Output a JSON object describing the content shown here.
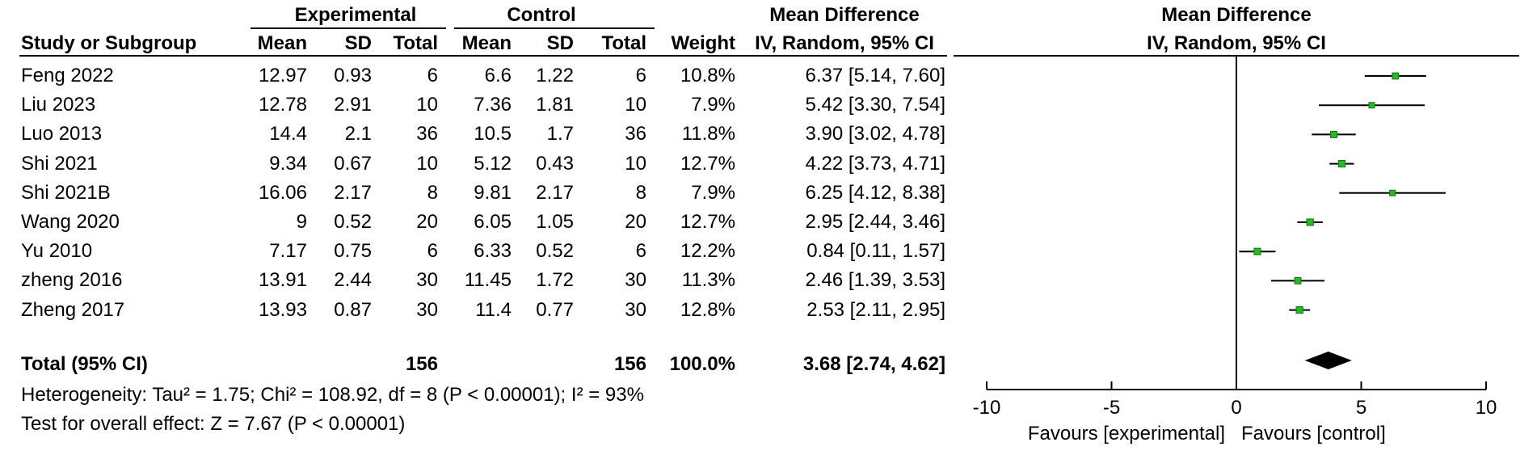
{
  "header": {
    "group1": "Experimental",
    "group2": "Control",
    "md_title": "Mean Difference",
    "md_subtitle": "IV, Random, 95% CI",
    "plot_title": "Mean Difference",
    "plot_subtitle": "IV, Random, 95% CI",
    "cols": {
      "study": "Study or Subgroup",
      "e_mean": "Mean",
      "e_sd": "SD",
      "e_total": "Total",
      "c_mean": "Mean",
      "c_sd": "SD",
      "c_total": "Total",
      "weight": "Weight"
    }
  },
  "studies": [
    {
      "name": "Feng 2022",
      "e_mean": "12.97",
      "e_sd": "0.93",
      "e_total": "6",
      "c_mean": "6.6",
      "c_sd": "1.22",
      "c_total": "6",
      "weight": "10.8%",
      "ci": "6.37 [5.14, 7.60]"
    },
    {
      "name": "Liu 2023",
      "e_mean": "12.78",
      "e_sd": "2.91",
      "e_total": "10",
      "c_mean": "7.36",
      "c_sd": "1.81",
      "c_total": "10",
      "weight": "7.9%",
      "ci": "5.42 [3.30, 7.54]"
    },
    {
      "name": "Luo 2013",
      "e_mean": "14.4",
      "e_sd": "2.1",
      "e_total": "36",
      "c_mean": "10.5",
      "c_sd": "1.7",
      "c_total": "36",
      "weight": "11.8%",
      "ci": "3.90 [3.02, 4.78]"
    },
    {
      "name": "Shi 2021",
      "e_mean": "9.34",
      "e_sd": "0.67",
      "e_total": "10",
      "c_mean": "5.12",
      "c_sd": "0.43",
      "c_total": "10",
      "weight": "12.7%",
      "ci": "4.22 [3.73, 4.71]"
    },
    {
      "name": "Shi 2021B",
      "e_mean": "16.06",
      "e_sd": "2.17",
      "e_total": "8",
      "c_mean": "9.81",
      "c_sd": "2.17",
      "c_total": "8",
      "weight": "7.9%",
      "ci": "6.25 [4.12, 8.38]"
    },
    {
      "name": "Wang 2020",
      "e_mean": "9",
      "e_sd": "0.52",
      "e_total": "20",
      "c_mean": "6.05",
      "c_sd": "1.05",
      "c_total": "20",
      "weight": "12.7%",
      "ci": "2.95 [2.44, 3.46]"
    },
    {
      "name": "Yu 2010",
      "e_mean": "7.17",
      "e_sd": "0.75",
      "e_total": "6",
      "c_mean": "6.33",
      "c_sd": "0.52",
      "c_total": "6",
      "weight": "12.2%",
      "ci": "0.84 [0.11, 1.57]"
    },
    {
      "name": "zheng 2016",
      "e_mean": "13.91",
      "e_sd": "2.44",
      "e_total": "30",
      "c_mean": "11.45",
      "c_sd": "1.72",
      "c_total": "30",
      "weight": "11.3%",
      "ci": "2.46 [1.39, 3.53]"
    },
    {
      "name": "Zheng 2017",
      "e_mean": "13.93",
      "e_sd": "0.87",
      "e_total": "30",
      "c_mean": "11.4",
      "c_sd": "0.77",
      "c_total": "30",
      "weight": "12.8%",
      "ci": "2.53 [2.11, 2.95]"
    }
  ],
  "total": {
    "label": "Total (95% CI)",
    "e_total": "156",
    "c_total": "156",
    "weight": "100.0%",
    "ci": "3.68 [2.74, 4.62]"
  },
  "heterogeneity": "Heterogeneity: Tau² = 1.75; Chi² = 108.92, df = 8 (P < 0.00001); I² = 93%",
  "overall_effect": "Test for overall effect: Z = 7.67 (P < 0.00001)",
  "colors": {
    "marker": "#22bb22",
    "diamond": "#000000",
    "line": "#000000"
  },
  "chart_data": {
    "type": "forest",
    "title": "Mean Difference",
    "subtitle": "IV, Random, 95% CI",
    "xlim": [
      -10,
      10
    ],
    "xticks": [
      -10,
      -5,
      0,
      5,
      10
    ],
    "xtick_labels": [
      "-10",
      "-5",
      "0",
      "5",
      "10"
    ],
    "favours_left": "Favours [experimental]",
    "favours_right": "Favours [control]",
    "points": [
      {
        "study": "Feng 2022",
        "md": 6.37,
        "lo": 5.14,
        "hi": 7.6,
        "weight": 10.8
      },
      {
        "study": "Liu 2023",
        "md": 5.42,
        "lo": 3.3,
        "hi": 7.54,
        "weight": 7.9
      },
      {
        "study": "Luo 2013",
        "md": 3.9,
        "lo": 3.02,
        "hi": 4.78,
        "weight": 11.8
      },
      {
        "study": "Shi 2021",
        "md": 4.22,
        "lo": 3.73,
        "hi": 4.71,
        "weight": 12.7
      },
      {
        "study": "Shi 2021B",
        "md": 6.25,
        "lo": 4.12,
        "hi": 8.38,
        "weight": 7.9
      },
      {
        "study": "Wang 2020",
        "md": 2.95,
        "lo": 2.44,
        "hi": 3.46,
        "weight": 12.7
      },
      {
        "study": "Yu 2010",
        "md": 0.84,
        "lo": 0.11,
        "hi": 1.57,
        "weight": 12.2
      },
      {
        "study": "zheng 2016",
        "md": 2.46,
        "lo": 1.39,
        "hi": 3.53,
        "weight": 11.3
      },
      {
        "study": "Zheng 2017",
        "md": 2.53,
        "lo": 2.11,
        "hi": 2.95,
        "weight": 12.8
      }
    ],
    "pooled": {
      "md": 3.68,
      "lo": 2.74,
      "hi": 4.62
    }
  }
}
